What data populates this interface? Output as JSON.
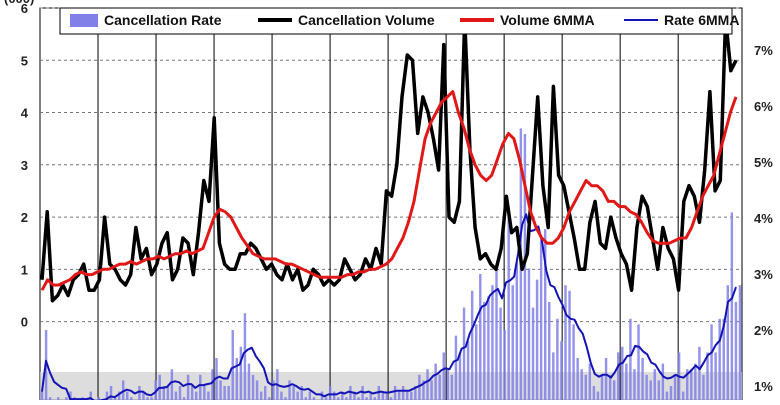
{
  "chart_data": {
    "type": "bar+line",
    "title": "",
    "left_axis_label_partial": "(000)",
    "ylim_left": [
      -1.5,
      6
    ],
    "ylim_right": [
      0.75,
      7.75
    ],
    "left_ticks": [
      "0",
      "1",
      "2",
      "3",
      "4",
      "5",
      "6"
    ],
    "left_tick_values": [
      0,
      1,
      2,
      3,
      4,
      5,
      6
    ],
    "right_ticks": [
      "1%",
      "2%",
      "3%",
      "4%",
      "5%",
      "6%",
      "7%"
    ],
    "right_tick_values": [
      1,
      2,
      3,
      4,
      5,
      6,
      7
    ],
    "grid": true,
    "legend_position": "top",
    "legend": [
      {
        "label": "Cancellation Rate",
        "color": "#8080e8",
        "kind": "bar"
      },
      {
        "label": "Cancellation Volume",
        "color": "#000000",
        "kind": "line"
      },
      {
        "label": "Volume 6MMA",
        "color": "#e01818",
        "kind": "line"
      },
      {
        "label": "Rate 6MMA",
        "color": "#1414b4",
        "kind": "line"
      }
    ],
    "shaded_band_right_axis": [
      0.75,
      1.25
    ],
    "rate_bars_right_axis": [
      0.9,
      2.0,
      0.8,
      0.6,
      0.8,
      0.7,
      0.8,
      0.9,
      0.8,
      0.6,
      0.8,
      0.7,
      0.9,
      0.6,
      0.8,
      0.7,
      0.9,
      1.0,
      0.8,
      0.9,
      1.1,
      0.9,
      0.8,
      0.7,
      1.0,
      0.9,
      0.8,
      0.8,
      1.1,
      1.2,
      1.0,
      1.0,
      1.3,
      0.9,
      1.0,
      0.8,
      1.2,
      1.0,
      0.9,
      1.2,
      1.0,
      0.9,
      1.3,
      1.5,
      1.1,
      1.0,
      1.0,
      2.0,
      1.5,
      1.7,
      2.3,
      1.4,
      1.2,
      1.1,
      0.9,
      1.0,
      0.8,
      1.1,
      1.3,
      0.9,
      0.8,
      1.1,
      1.0,
      0.9,
      1.0,
      0.8,
      0.9,
      0.8,
      0.7,
      0.9,
      0.8,
      1.0,
      0.9,
      0.8,
      0.9,
      0.8,
      1.0,
      0.9,
      0.8,
      1.0,
      0.8,
      0.9,
      0.8,
      1.0,
      0.9,
      0.9,
      0.8,
      1.0,
      0.9,
      1.0,
      0.9,
      0.9,
      1.0,
      1.2,
      1.1,
      1.3,
      1.1,
      1.4,
      1.2,
      1.6,
      1.3,
      1.2,
      1.9,
      1.6,
      2.4,
      1.8,
      2.7,
      2.1,
      3.0,
      2.5,
      2.6,
      2.8,
      3.1,
      2.4,
      2.0,
      4.2,
      2.8,
      3.2,
      5.6,
      5.5,
      3.1,
      2.4,
      2.9,
      3.6,
      3.8,
      2.5,
      1.6,
      2.2,
      1.8,
      2.8,
      2.7,
      2.1,
      1.5,
      1.3,
      1.2,
      1.4,
      1.0,
      0.9,
      1.2,
      1.5,
      1.2,
      1.1,
      1.6,
      1.7,
      1.4,
      2.2,
      1.3,
      2.1,
      1.5,
      1.2,
      1.1,
      1.3,
      1.1,
      1.4,
      0.9,
      1.0,
      1.2,
      1.6,
      0.9,
      1.3,
      1.3,
      1.4,
      1.7,
      1.2,
      1.6,
      2.1,
      1.6,
      2.2,
      2.2,
      2.8,
      4.1,
      2.5,
      2.8
    ],
    "cancellation_volume": [
      0.8,
      2.1,
      0.4,
      0.5,
      0.7,
      0.5,
      0.8,
      0.9,
      1.1,
      0.6,
      0.6,
      0.8,
      2.0,
      1.1,
      1.0,
      0.8,
      0.7,
      0.9,
      1.8,
      1.2,
      1.4,
      0.9,
      1.1,
      1.5,
      1.7,
      0.8,
      1.0,
      1.6,
      1.5,
      0.9,
      1.7,
      2.7,
      2.3,
      3.9,
      1.5,
      1.1,
      1.0,
      1.0,
      1.3,
      1.3,
      1.5,
      1.4,
      1.2,
      1.0,
      1.1,
      0.9,
      0.8,
      1.1,
      0.8,
      1.0,
      0.6,
      0.7,
      1.0,
      0.9,
      0.7,
      0.8,
      0.7,
      0.8,
      1.2,
      1.0,
      0.8,
      0.9,
      1.2,
      1.0,
      1.4,
      1.1,
      2.5,
      2.4,
      3.0,
      4.3,
      5.1,
      5.0,
      3.6,
      4.3,
      4.0,
      3.5,
      2.9,
      5.3,
      2.0,
      1.9,
      2.3,
      5.8,
      3.3,
      1.8,
      1.2,
      1.3,
      1.1,
      1.0,
      1.4,
      2.4,
      1.7,
      1.8,
      1.0,
      1.3,
      2.8,
      4.3,
      2.6,
      1.8,
      4.5,
      2.8,
      2.6,
      2.1,
      1.6,
      1.0,
      1.0,
      1.9,
      2.3,
      1.5,
      1.4,
      2.0,
      1.6,
      1.3,
      1.1,
      0.6,
      1.8,
      2.4,
      2.2,
      1.6,
      1.0,
      1.8,
      1.4,
      1.2,
      0.6,
      2.3,
      2.6,
      2.4,
      1.9,
      2.9,
      4.4,
      2.5,
      2.7,
      5.8,
      4.8,
      5.0
    ],
    "volume_6mma": [
      0.6,
      0.8,
      0.7,
      0.7,
      0.75,
      0.8,
      0.9,
      0.95,
      0.9,
      0.9,
      0.95,
      1.0,
      1.0,
      1.05,
      1.1,
      1.1,
      1.15,
      1.1,
      1.15,
      1.2,
      1.2,
      1.25,
      1.2,
      1.25,
      1.3,
      1.3,
      1.35,
      1.3,
      1.35,
      1.4,
      1.7,
      2.0,
      2.15,
      2.1,
      2.0,
      1.8,
      1.6,
      1.45,
      1.3,
      1.25,
      1.2,
      1.2,
      1.2,
      1.15,
      1.1,
      1.1,
      1.05,
      1.0,
      0.95,
      0.9,
      0.85,
      0.85,
      0.85,
      0.85,
      0.85,
      0.9,
      0.9,
      0.95,
      0.95,
      1.0,
      1.0,
      1.05,
      1.1,
      1.2,
      1.4,
      1.6,
      1.9,
      2.3,
      2.9,
      3.5,
      3.8,
      4.0,
      4.2,
      4.3,
      4.4,
      4.0,
      3.7,
      3.3,
      3.0,
      2.8,
      2.7,
      2.8,
      3.1,
      3.4,
      3.6,
      3.5,
      3.1,
      2.6,
      2.1,
      1.8,
      1.6,
      1.5,
      1.5,
      1.6,
      1.8,
      2.1,
      2.3,
      2.5,
      2.7,
      2.6,
      2.6,
      2.5,
      2.3,
      2.3,
      2.2,
      2.2,
      2.1,
      2.05,
      1.9,
      1.7,
      1.55,
      1.5,
      1.5,
      1.5,
      1.55,
      1.6,
      1.6,
      1.8,
      2.1,
      2.4,
      2.6,
      2.8,
      3.2,
      3.6,
      4.0,
      4.3
    ]
  }
}
